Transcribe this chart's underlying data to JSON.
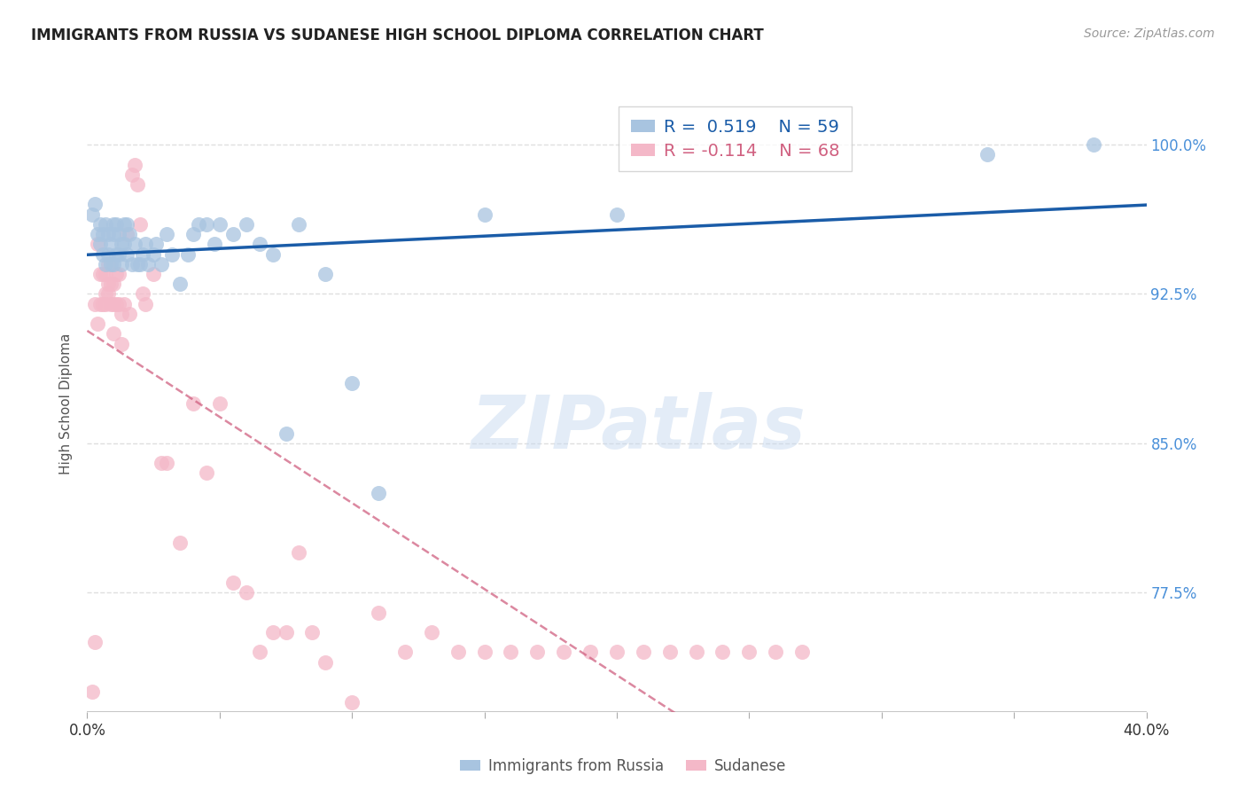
{
  "title": "IMMIGRANTS FROM RUSSIA VS SUDANESE HIGH SCHOOL DIPLOMA CORRELATION CHART",
  "source": "Source: ZipAtlas.com",
  "ylabel": "High School Diploma",
  "ytick_labels": [
    "100.0%",
    "92.5%",
    "85.0%",
    "77.5%"
  ],
  "ytick_values": [
    1.0,
    0.925,
    0.85,
    0.775
  ],
  "xmin": 0.0,
  "xmax": 0.4,
  "ymin": 0.715,
  "ymax": 1.025,
  "legend_r_russia": "0.519",
  "legend_n_russia": "59",
  "legend_r_sudanese": "-0.114",
  "legend_n_sudanese": "68",
  "russia_color": "#a8c4e0",
  "sudanese_color": "#f4b8c8",
  "russia_line_color": "#1a5ca8",
  "sudanese_line_color": "#d06080",
  "russia_x": [
    0.002,
    0.003,
    0.004,
    0.005,
    0.005,
    0.006,
    0.006,
    0.007,
    0.007,
    0.008,
    0.008,
    0.009,
    0.009,
    0.01,
    0.01,
    0.01,
    0.011,
    0.011,
    0.012,
    0.012,
    0.013,
    0.013,
    0.014,
    0.014,
    0.015,
    0.015,
    0.016,
    0.017,
    0.018,
    0.019,
    0.02,
    0.021,
    0.022,
    0.023,
    0.025,
    0.026,
    0.028,
    0.03,
    0.032,
    0.035,
    0.038,
    0.04,
    0.042,
    0.045,
    0.048,
    0.05,
    0.055,
    0.06,
    0.065,
    0.07,
    0.075,
    0.08,
    0.09,
    0.1,
    0.11,
    0.15,
    0.2,
    0.34,
    0.38
  ],
  "russia_y": [
    0.965,
    0.97,
    0.955,
    0.95,
    0.96,
    0.945,
    0.955,
    0.94,
    0.96,
    0.945,
    0.955,
    0.94,
    0.95,
    0.94,
    0.955,
    0.96,
    0.945,
    0.96,
    0.945,
    0.955,
    0.94,
    0.95,
    0.95,
    0.96,
    0.945,
    0.96,
    0.955,
    0.94,
    0.95,
    0.94,
    0.94,
    0.945,
    0.95,
    0.94,
    0.945,
    0.95,
    0.94,
    0.955,
    0.945,
    0.93,
    0.945,
    0.955,
    0.96,
    0.96,
    0.95,
    0.96,
    0.955,
    0.96,
    0.95,
    0.945,
    0.855,
    0.96,
    0.935,
    0.88,
    0.825,
    0.965,
    0.965,
    0.995,
    1.0
  ],
  "sudanese_x": [
    0.002,
    0.003,
    0.003,
    0.004,
    0.004,
    0.005,
    0.005,
    0.006,
    0.006,
    0.007,
    0.007,
    0.007,
    0.008,
    0.008,
    0.008,
    0.009,
    0.009,
    0.01,
    0.01,
    0.01,
    0.011,
    0.011,
    0.012,
    0.012,
    0.013,
    0.013,
    0.014,
    0.015,
    0.016,
    0.017,
    0.018,
    0.019,
    0.02,
    0.021,
    0.022,
    0.025,
    0.028,
    0.03,
    0.035,
    0.04,
    0.045,
    0.05,
    0.055,
    0.06,
    0.065,
    0.07,
    0.075,
    0.08,
    0.085,
    0.09,
    0.1,
    0.11,
    0.12,
    0.13,
    0.14,
    0.15,
    0.16,
    0.17,
    0.18,
    0.19,
    0.2,
    0.21,
    0.22,
    0.23,
    0.24,
    0.25,
    0.26,
    0.27
  ],
  "sudanese_y": [
    0.725,
    0.75,
    0.92,
    0.91,
    0.95,
    0.92,
    0.935,
    0.92,
    0.935,
    0.92,
    0.925,
    0.935,
    0.925,
    0.93,
    0.94,
    0.92,
    0.93,
    0.905,
    0.92,
    0.93,
    0.92,
    0.935,
    0.92,
    0.935,
    0.915,
    0.9,
    0.92,
    0.955,
    0.915,
    0.985,
    0.99,
    0.98,
    0.96,
    0.925,
    0.92,
    0.935,
    0.84,
    0.84,
    0.8,
    0.87,
    0.835,
    0.87,
    0.78,
    0.775,
    0.745,
    0.755,
    0.755,
    0.795,
    0.755,
    0.74,
    0.72,
    0.765,
    0.745,
    0.755,
    0.745,
    0.745,
    0.745,
    0.745,
    0.745,
    0.745,
    0.745,
    0.745,
    0.745,
    0.745,
    0.745,
    0.745,
    0.745,
    0.745
  ],
  "background_color": "#ffffff",
  "grid_color": "#d8d8d8",
  "watermark_text": "ZIPatlas",
  "watermark_color": "#c8daf0"
}
